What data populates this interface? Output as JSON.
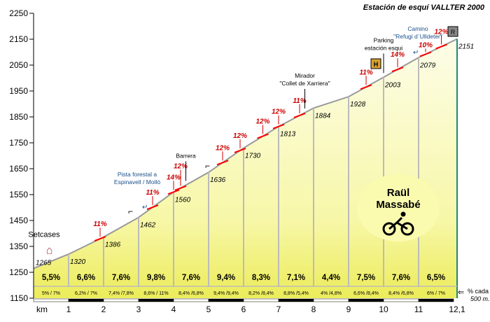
{
  "chart_data": {
    "type": "area",
    "title": "Estación de esquí  VALLTER 2000",
    "xlabel": "km",
    "ylim": [
      1150,
      2250
    ],
    "xlim": [
      0,
      12.1
    ],
    "yticks": [
      1150,
      1250,
      1350,
      1450,
      1550,
      1650,
      1750,
      1850,
      1950,
      2050,
      2150,
      2250
    ],
    "xticks": [
      "1",
      "2",
      "3",
      "4",
      "5",
      "6",
      "7",
      "8",
      "9",
      "10",
      "11",
      "12,1"
    ],
    "grid": false,
    "points": [
      {
        "km": 0,
        "alt": 1265
      },
      {
        "km": 1,
        "alt": 1320
      },
      {
        "km": 2,
        "alt": 1386
      },
      {
        "km": 3,
        "alt": 1462
      },
      {
        "km": 4,
        "alt": 1560
      },
      {
        "km": 5,
        "alt": 1636
      },
      {
        "km": 6,
        "alt": 1730
      },
      {
        "km": 7,
        "alt": 1813
      },
      {
        "km": 8,
        "alt": 1884
      },
      {
        "km": 9,
        "alt": 1928
      },
      {
        "km": 10,
        "alt": 2003
      },
      {
        "km": 11,
        "alt": 2079
      },
      {
        "km": 12.1,
        "alt": 2151
      }
    ],
    "gradients": [
      "5,5%",
      "6,6%",
      "7,6%",
      "9,8%",
      "7,6%",
      "9,4%",
      "8,3%",
      "7,1%",
      "4,4%",
      "7,5%",
      "7,6%",
      "6,5%"
    ],
    "half_km_gradients": [
      "5% / 7%",
      "6,2% / 7%",
      "7,4% /7,8%",
      "8,6% / 11%",
      "8,4% /6,8%",
      "9,4% /9,4%",
      "8,2% /8,4%",
      "8,8% /5,4%",
      "4% /4,8%",
      "6,6% /8,4%",
      "8,4% /6,8%",
      "6% / 7%"
    ],
    "half_km_note": "% cada 500 m.",
    "steep_markers": [
      {
        "km": 1.9,
        "label": "11%"
      },
      {
        "km": 3.4,
        "label": "11%"
      },
      {
        "km": 4.0,
        "label": "14%"
      },
      {
        "km": 4.2,
        "label": "12%"
      },
      {
        "km": 5.4,
        "label": "12%"
      },
      {
        "km": 5.9,
        "label": "12%"
      },
      {
        "km": 6.55,
        "label": "12%"
      },
      {
        "km": 7.0,
        "label": "12%"
      },
      {
        "km": 7.6,
        "label": "11%"
      },
      {
        "km": 9.5,
        "label": "11%"
      },
      {
        "km": 10.4,
        "label": "14%"
      },
      {
        "km": 11.2,
        "label": "10%"
      },
      {
        "km": 11.65,
        "label": "12%"
      }
    ],
    "places": [
      {
        "km": 0.3,
        "lines": [
          "Setcases"
        ]
      },
      {
        "km": 3.2,
        "lines": [
          "Pista forestal a",
          "Espinavell / Molló"
        ]
      },
      {
        "km": 4.35,
        "lines": [
          "Barrera"
        ]
      },
      {
        "km": 7.75,
        "lines": [
          "Mirador",
          "\"Collet de Xarriera\""
        ]
      },
      {
        "km": 10.0,
        "lines": [
          "Parking",
          "estación esqui"
        ]
      },
      {
        "km": 11.7,
        "lines": [
          "Camino",
          "\"Refugi d´Ulldeter\""
        ]
      }
    ],
    "author": [
      "Raül",
      "Massabé"
    ],
    "colors": {
      "fill": "#f2f27a",
      "fill_top": "#fdfde8",
      "line": "#ff0000",
      "marker": "#cc0000",
      "blue": "#1a4f8a",
      "axis_right": "#1a8a7a"
    }
  }
}
